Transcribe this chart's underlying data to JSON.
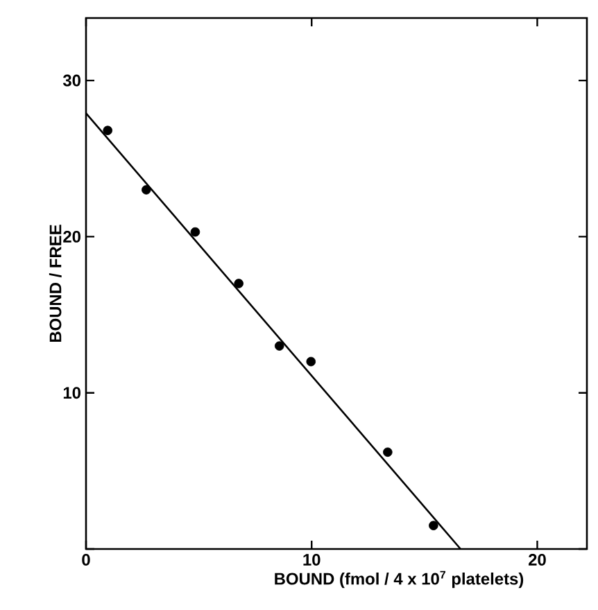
{
  "chart_data": {
    "type": "scatter",
    "xlabel": "BOUND  (fmol / 4 x 10$^{7}$ platelets)",
    "ylabel": "BOUND / FREE",
    "xlim": [
      0,
      22.2
    ],
    "ylim": [
      0,
      34
    ],
    "xticks": [
      0,
      10,
      20
    ],
    "yticks": [
      {
        "value": 0,
        "label": null
      },
      10,
      20,
      30
    ],
    "series": [
      {
        "color": "#000000",
        "marker": "circle",
        "x": [
          0.96,
          2.67,
          4.84,
          6.77,
          8.57,
          9.97,
          13.37,
          15.4
        ],
        "values": [
          26.8,
          23.0,
          20.3,
          17.0,
          13.0,
          12.0,
          6.2,
          1.5
        ]
      },
      {
        "type": "line",
        "color": "#000000",
        "marker": "none",
        "x": [
          0,
          16.6
        ],
        "values": [
          27.9,
          0
        ]
      }
    ]
  }
}
